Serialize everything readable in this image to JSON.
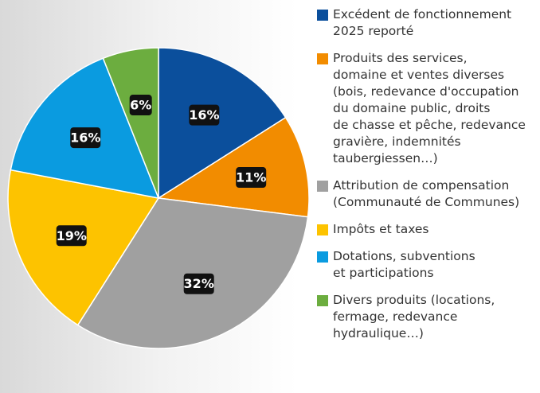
{
  "chart_data": {
    "type": "pie",
    "categories": [
      "Excédent de fonctionnement\n2025 reporté",
      "Produits des services,\ndomaine et ventes diverses\n(bois, redevance d'occupation\ndu domaine public, droits\nde chasse et pêche, redevance\ngravière, indemnités\ntaubergiessen…)",
      "Attribution de compensation\n(Communauté de Communes)",
      "Impôts et taxes",
      "Dotations, subventions\net participations",
      "Divers produits (locations,\nfermage, redevance\nhydraulique…)"
    ],
    "values": [
      16,
      11,
      32,
      19,
      16,
      6
    ],
    "value_labels": [
      "16%",
      "11%",
      "32%",
      "19%",
      "16%",
      "6%"
    ],
    "colors": [
      "#0b4f9c",
      "#f28c00",
      "#a0a0a0",
      "#fdc300",
      "#0a9be0",
      "#6cad3f"
    ]
  }
}
